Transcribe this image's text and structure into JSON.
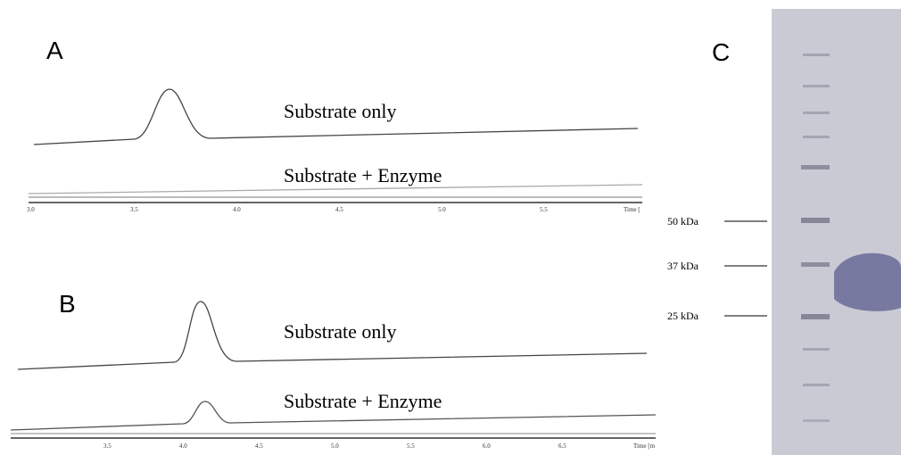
{
  "panels": [
    {
      "label": "A",
      "traces": [
        "Substrate only",
        "Substrate + Enzyme"
      ],
      "axis_ticks": [
        "3.0",
        "3.5",
        "4.0",
        "4.5",
        "5.0",
        "5.5",
        "Time ["
      ]
    },
    {
      "label": "B",
      "traces": [
        "Substrate only",
        "Substrate + Enzyme"
      ],
      "axis_ticks": [
        "3.5",
        "4.0",
        "4.5",
        "5.0",
        "5.5",
        "6.0",
        "6.5",
        "Time [m"
      ]
    }
  ],
  "gel": {
    "label": "C",
    "markers": [
      "50 kDa",
      "37 kDa",
      "25 kDa"
    ]
  }
}
